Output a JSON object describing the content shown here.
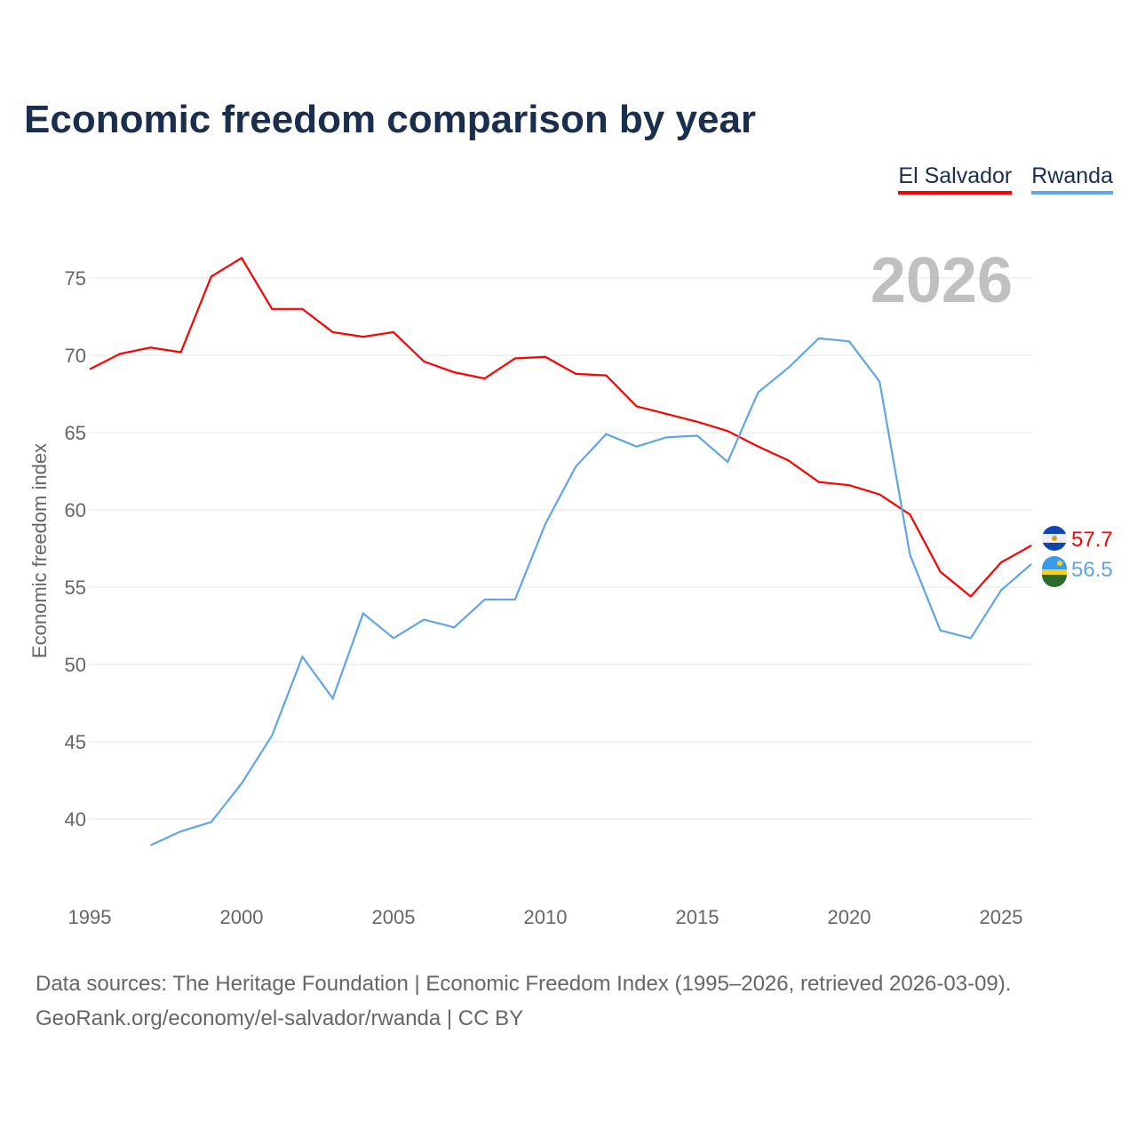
{
  "title": "Economic freedom comparison by year",
  "source_line1": "Data sources: The Heritage Foundation | Economic Freedom Index (1995–2026, retrieved 2026-03-09).",
  "source_line2": "GeoRank.org/economy/el-salvador/rwanda | CC BY",
  "chart_data": {
    "type": "line",
    "title": "Economic freedom comparison by year",
    "ylabel": "Economic freedom index",
    "xlabel": "",
    "year_watermark": "2026",
    "xlim": [
      1995,
      2026
    ],
    "ylim": [
      35,
      78
    ],
    "xticks": [
      1995,
      2000,
      2005,
      2010,
      2015,
      2020,
      2025
    ],
    "yticks": [
      40,
      45,
      50,
      55,
      60,
      65,
      70,
      75
    ],
    "grid": true,
    "legend_placement": "top-right",
    "series": [
      {
        "name": "El Salvador",
        "color": "#ff0000",
        "end_label": "57.7",
        "x": [
          1995,
          1996,
          1997,
          1998,
          1999,
          2000,
          2001,
          2002,
          2003,
          2004,
          2005,
          2006,
          2007,
          2008,
          2009,
          2010,
          2011,
          2012,
          2013,
          2014,
          2015,
          2016,
          2017,
          2018,
          2019,
          2020,
          2021,
          2022,
          2023,
          2024,
          2025,
          2026
        ],
        "values": [
          69.1,
          70.1,
          70.5,
          70.2,
          75.1,
          76.3,
          73.0,
          73.0,
          71.5,
          71.2,
          71.5,
          69.6,
          68.9,
          68.5,
          69.8,
          69.9,
          68.8,
          68.7,
          66.7,
          66.2,
          65.7,
          65.1,
          64.1,
          63.2,
          61.8,
          61.6,
          61.0,
          59.7,
          56.0,
          54.4,
          56.6,
          57.7
        ]
      },
      {
        "name": "Rwanda",
        "color": "#5ea5ea",
        "end_label": "56.5",
        "x": [
          1997,
          1998,
          1999,
          2000,
          2001,
          2002,
          2003,
          2004,
          2005,
          2006,
          2007,
          2008,
          2009,
          2010,
          2011,
          2012,
          2013,
          2014,
          2015,
          2016,
          2017,
          2018,
          2019,
          2020,
          2021,
          2022,
          2023,
          2024,
          2025,
          2026
        ],
        "values": [
          38.3,
          39.2,
          39.8,
          42.3,
          45.4,
          50.5,
          47.8,
          53.3,
          51.7,
          52.9,
          52.4,
          54.2,
          54.2,
          59.1,
          62.8,
          64.9,
          64.1,
          64.7,
          64.8,
          63.1,
          67.6,
          69.2,
          71.1,
          70.9,
          68.3,
          57.1,
          52.2,
          51.7,
          54.8,
          56.5
        ]
      }
    ]
  }
}
